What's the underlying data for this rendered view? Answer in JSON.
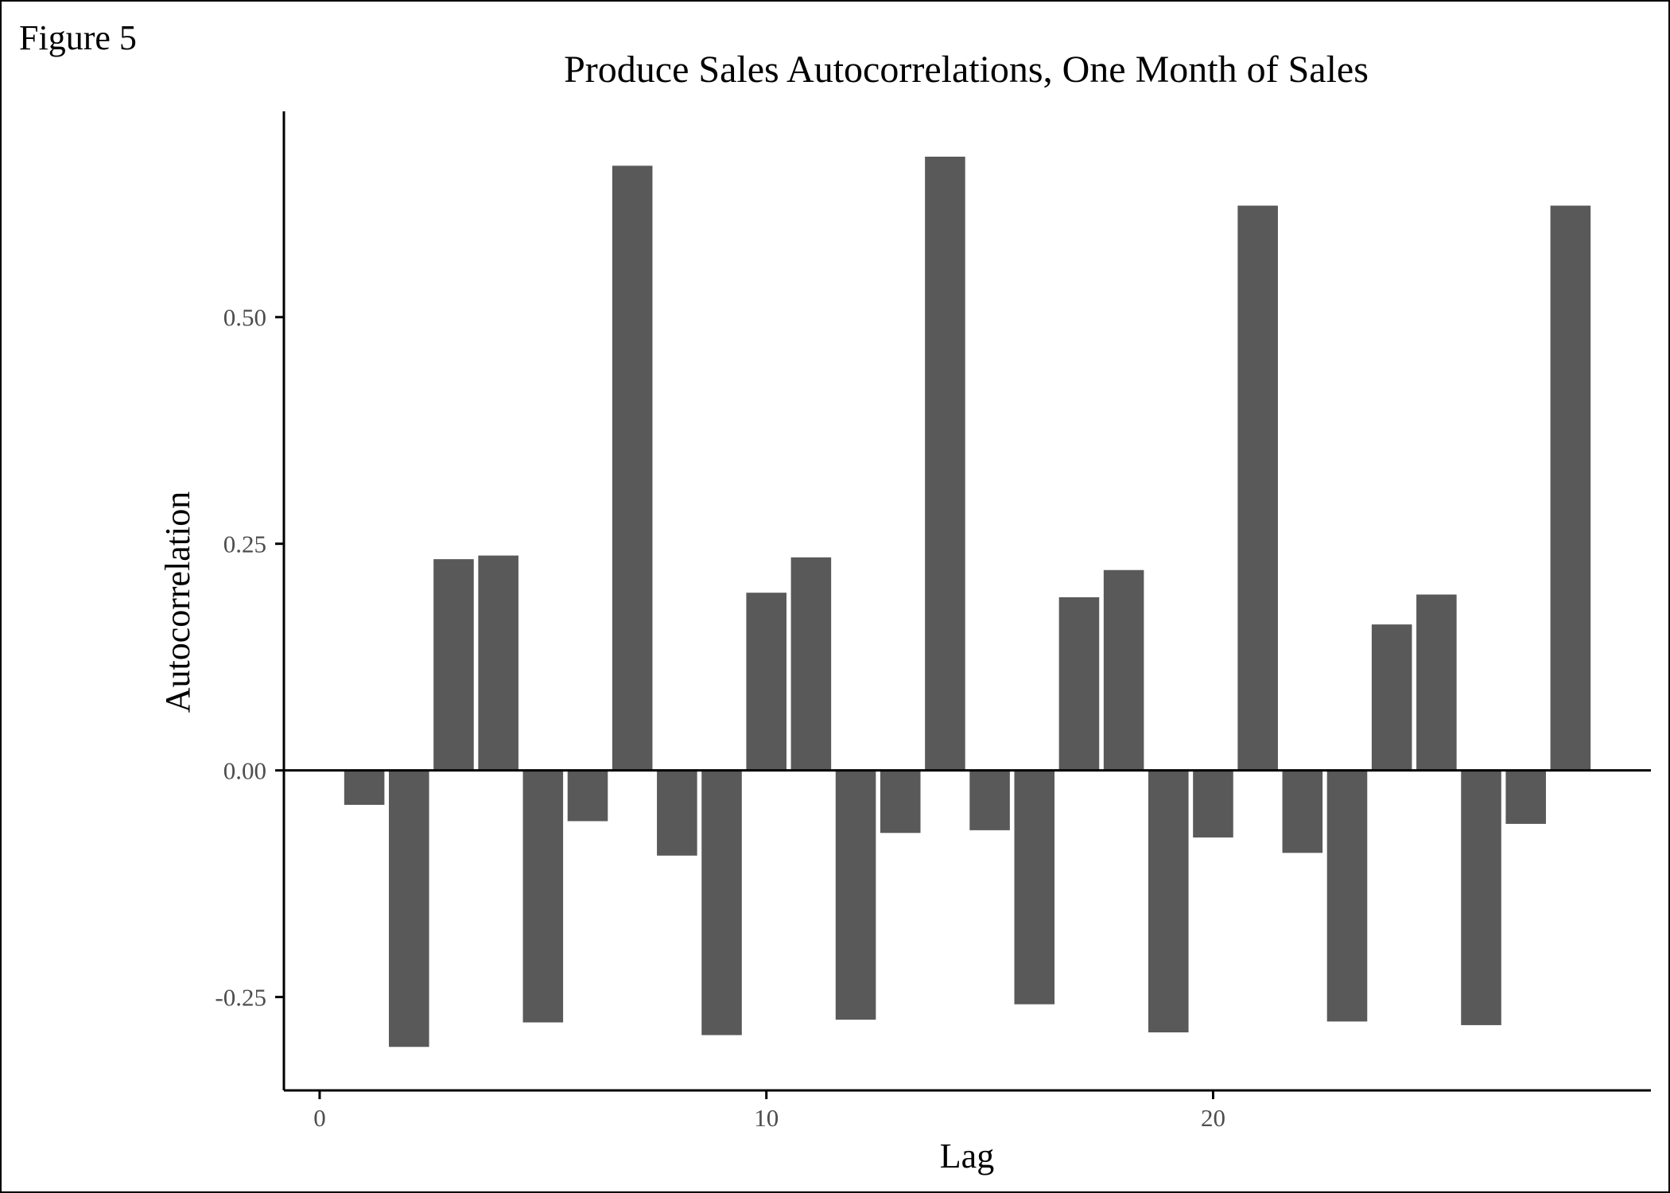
{
  "figure_label": "Figure 5",
  "chart_data": {
    "type": "bar",
    "title": "Produce Sales Autocorrelations, One Month of Sales",
    "xlabel": "Lag",
    "ylabel": "Autocorrelation",
    "x_ticks": [
      0,
      10,
      20
    ],
    "y_ticks": [
      -0.25,
      0.0,
      0.25,
      0.5
    ],
    "y_tick_labels": [
      "-0.25",
      "0.00",
      "0.25",
      "0.50"
    ],
    "xlim": [
      -0.8,
      29.8
    ],
    "ylim": [
      -0.353,
      0.727
    ],
    "grid": false,
    "bar_color": "#595959",
    "series": [
      {
        "x": [
          1,
          2,
          3,
          4,
          5,
          6,
          7,
          8,
          9,
          10,
          11,
          12,
          13,
          14,
          15,
          16,
          17,
          18,
          19,
          20,
          21,
          22,
          23,
          24,
          25,
          26,
          27,
          28
        ],
        "values": [
          -0.038,
          -0.305,
          0.233,
          0.237,
          -0.278,
          -0.056,
          0.667,
          -0.094,
          -0.292,
          0.196,
          0.235,
          -0.275,
          -0.069,
          0.677,
          -0.066,
          -0.258,
          0.191,
          0.221,
          -0.289,
          -0.074,
          0.623,
          -0.091,
          -0.277,
          0.161,
          0.194,
          -0.281,
          -0.059,
          0.623
        ]
      }
    ]
  }
}
